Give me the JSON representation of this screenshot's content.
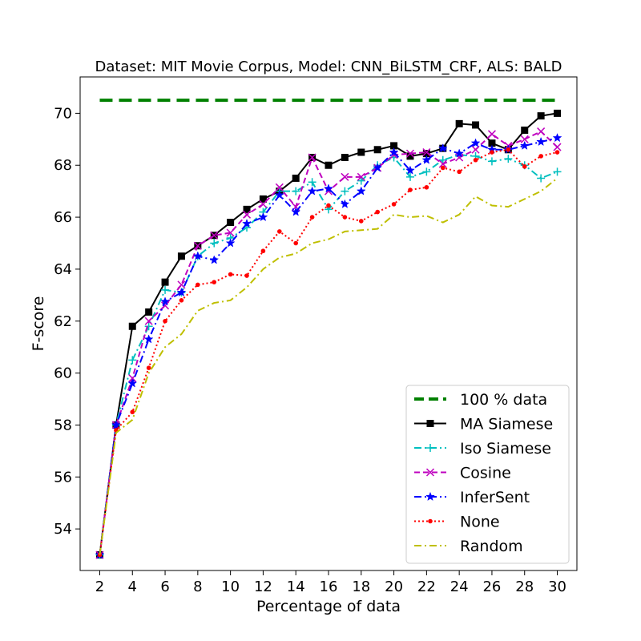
{
  "chart_data": {
    "type": "line",
    "title": "Dataset: MIT Movie Corpus, Model: CNN_BiLSTM_CRF, ALS: BALD",
    "xlabel": "Percentage of data",
    "ylabel": "F-score",
    "xlim": [
      0.8,
      31.2
    ],
    "ylim": [
      52.4,
      71.4
    ],
    "xticks": [
      2,
      4,
      6,
      8,
      10,
      12,
      14,
      16,
      18,
      20,
      22,
      24,
      26,
      28,
      30
    ],
    "yticks": [
      54,
      56,
      58,
      60,
      62,
      64,
      66,
      68,
      70
    ],
    "legend_position": "lower-right",
    "grid": false,
    "x": [
      2,
      3,
      4,
      5,
      6,
      7,
      8,
      9,
      10,
      11,
      12,
      13,
      14,
      15,
      16,
      17,
      18,
      19,
      20,
      21,
      22,
      23,
      24,
      25,
      26,
      27,
      28,
      29,
      30
    ],
    "series": [
      {
        "name": "100 % data",
        "style": "dashed-thick",
        "color": "#008000",
        "marker": "none",
        "x": [
          2,
          30
        ],
        "values": [
          70.5,
          70.5
        ]
      },
      {
        "name": "MA Siamese",
        "style": "solid",
        "color": "#000000",
        "marker": "square",
        "values": [
          53.0,
          58.0,
          61.8,
          62.35,
          63.5,
          64.5,
          64.9,
          65.3,
          65.8,
          66.3,
          66.7,
          67.0,
          67.5,
          68.3,
          68.0,
          68.3,
          68.5,
          68.6,
          68.75,
          68.35,
          68.45,
          68.65,
          69.6,
          69.55,
          68.85,
          68.6,
          69.35,
          69.9,
          70.0
        ]
      },
      {
        "name": "Iso Siamese",
        "style": "dashdot",
        "color": "#00bfbf",
        "marker": "plus",
        "values": [
          53.0,
          58.0,
          60.5,
          61.8,
          63.2,
          63.1,
          64.5,
          65.0,
          65.2,
          65.6,
          66.2,
          67.0,
          67.0,
          67.35,
          66.3,
          67.0,
          67.4,
          68.0,
          68.3,
          67.55,
          67.75,
          68.2,
          68.4,
          68.35,
          68.15,
          68.25,
          68.0,
          67.5,
          67.75
        ]
      },
      {
        "name": "Cosine",
        "style": "dashed",
        "color": "#bf00bf",
        "marker": "x",
        "values": [
          53.0,
          58.0,
          59.8,
          62.0,
          62.6,
          63.4,
          64.9,
          65.3,
          65.4,
          66.1,
          66.5,
          67.15,
          66.4,
          68.3,
          67.0,
          67.55,
          67.55,
          67.9,
          68.4,
          68.45,
          68.5,
          68.05,
          68.3,
          68.6,
          69.2,
          68.75,
          69.0,
          69.3,
          68.7
        ]
      },
      {
        "name": "InferSent",
        "style": "dashdot",
        "color": "#0000ff",
        "marker": "star",
        "values": [
          53.0,
          58.0,
          59.6,
          61.3,
          62.75,
          63.1,
          64.5,
          64.35,
          65.0,
          65.75,
          66.0,
          66.85,
          66.2,
          67.0,
          67.1,
          66.5,
          67.0,
          67.9,
          68.5,
          67.8,
          68.2,
          68.65,
          68.45,
          68.85,
          68.6,
          68.6,
          68.75,
          68.9,
          69.05
        ]
      },
      {
        "name": "None",
        "style": "dotted",
        "color": "#ff0000",
        "marker": "dot",
        "values": [
          53.0,
          57.8,
          58.5,
          60.2,
          62.0,
          62.8,
          63.4,
          63.5,
          63.8,
          63.75,
          64.7,
          65.45,
          65.0,
          66.0,
          66.45,
          66.0,
          65.85,
          66.2,
          66.5,
          67.05,
          67.15,
          67.9,
          67.75,
          68.2,
          68.5,
          68.6,
          67.95,
          68.35,
          68.5
        ]
      },
      {
        "name": "Random",
        "style": "dashdot",
        "color": "#bfbf00",
        "marker": "none",
        "values": [
          53.0,
          57.7,
          58.2,
          60.0,
          61.0,
          61.5,
          62.4,
          62.7,
          62.8,
          63.3,
          64.0,
          64.45,
          64.6,
          65.0,
          65.15,
          65.45,
          65.5,
          65.55,
          66.1,
          66.0,
          66.05,
          65.8,
          66.1,
          66.8,
          66.45,
          66.4,
          66.7,
          67.0,
          67.5
        ]
      }
    ]
  }
}
